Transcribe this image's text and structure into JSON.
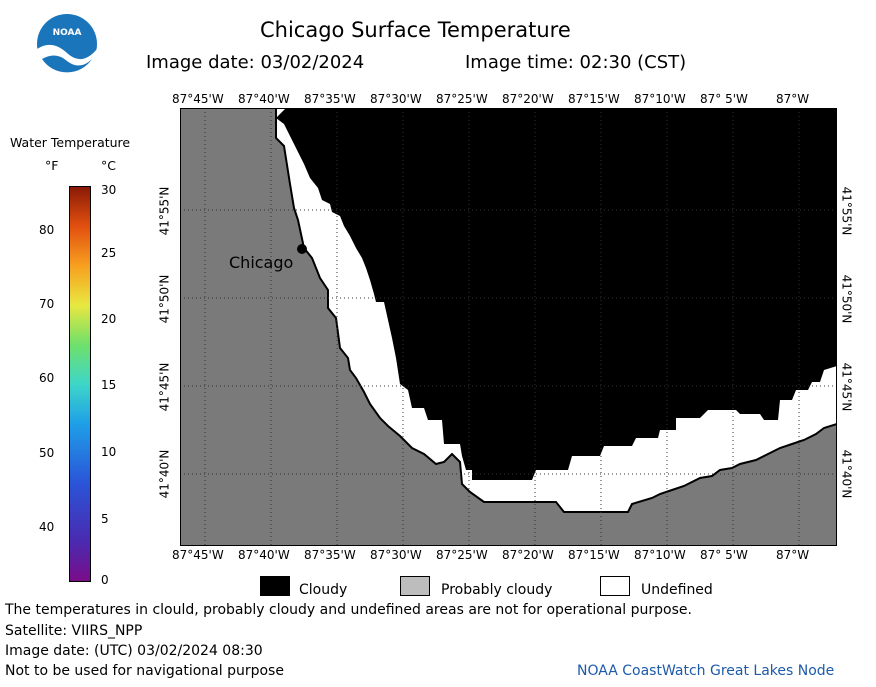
{
  "header": {
    "title": "Chicago Surface Temperature",
    "image_date": "Image date: 03/02/2024",
    "image_time": "Image time: 02:30 (CST)"
  },
  "logo": {
    "text": "NOAA"
  },
  "colorbar": {
    "title": "Water Temperature",
    "unit_f": "°F",
    "unit_c": "°C",
    "f_ticks": [
      "80",
      "70",
      "60",
      "50",
      "40"
    ],
    "c_ticks": [
      "30",
      "25",
      "20",
      "15",
      "10",
      "5",
      "0"
    ]
  },
  "map": {
    "top_lon_labels": [
      "87°45'W",
      "87°40'W",
      "87°35'W",
      "87°30'W",
      "87°25'W",
      "87°20'W",
      "87°15'W",
      "87°10'W",
      "87° 5'W",
      "87°W"
    ],
    "bottom_lon_labels": [
      "87°45'W",
      "87°40'W",
      "87°35'W",
      "87°30'W",
      "87°25'W",
      "87°20'W",
      "87°15'W",
      "87°10'W",
      "87° 5'W",
      "87°W"
    ],
    "left_lat_labels": [
      "41°55'N",
      "41°50'N",
      "41°45'N",
      "41°40'N"
    ],
    "right_lat_labels": [
      "41°55'N",
      "41°50'N",
      "41°45'N",
      "41°40'N"
    ],
    "city_label": "Chicago",
    "colors": {
      "land": "#7a7a7a",
      "cloudy": "#000000",
      "undefined": "#ffffff"
    }
  },
  "legend": {
    "cloudy": "Cloudy",
    "probably_cloudy": "Probably cloudy",
    "undefined": "Undefined",
    "colors": {
      "cloudy": "#000000",
      "probably_cloudy": "#bdbdbd",
      "undefined": "#ffffff"
    }
  },
  "footer": {
    "disclaimer": "The temperatures in clould, probably cloudy and undefined areas are not for operational purpose.",
    "satellite": "Satellite: VIIRS_NPP",
    "utc_date": "Image date: (UTC) 03/02/2024  08:30",
    "nav_warning": "Not to be used for navigational purpose",
    "credit": "NOAA CoastWatch Great Lakes Node"
  }
}
